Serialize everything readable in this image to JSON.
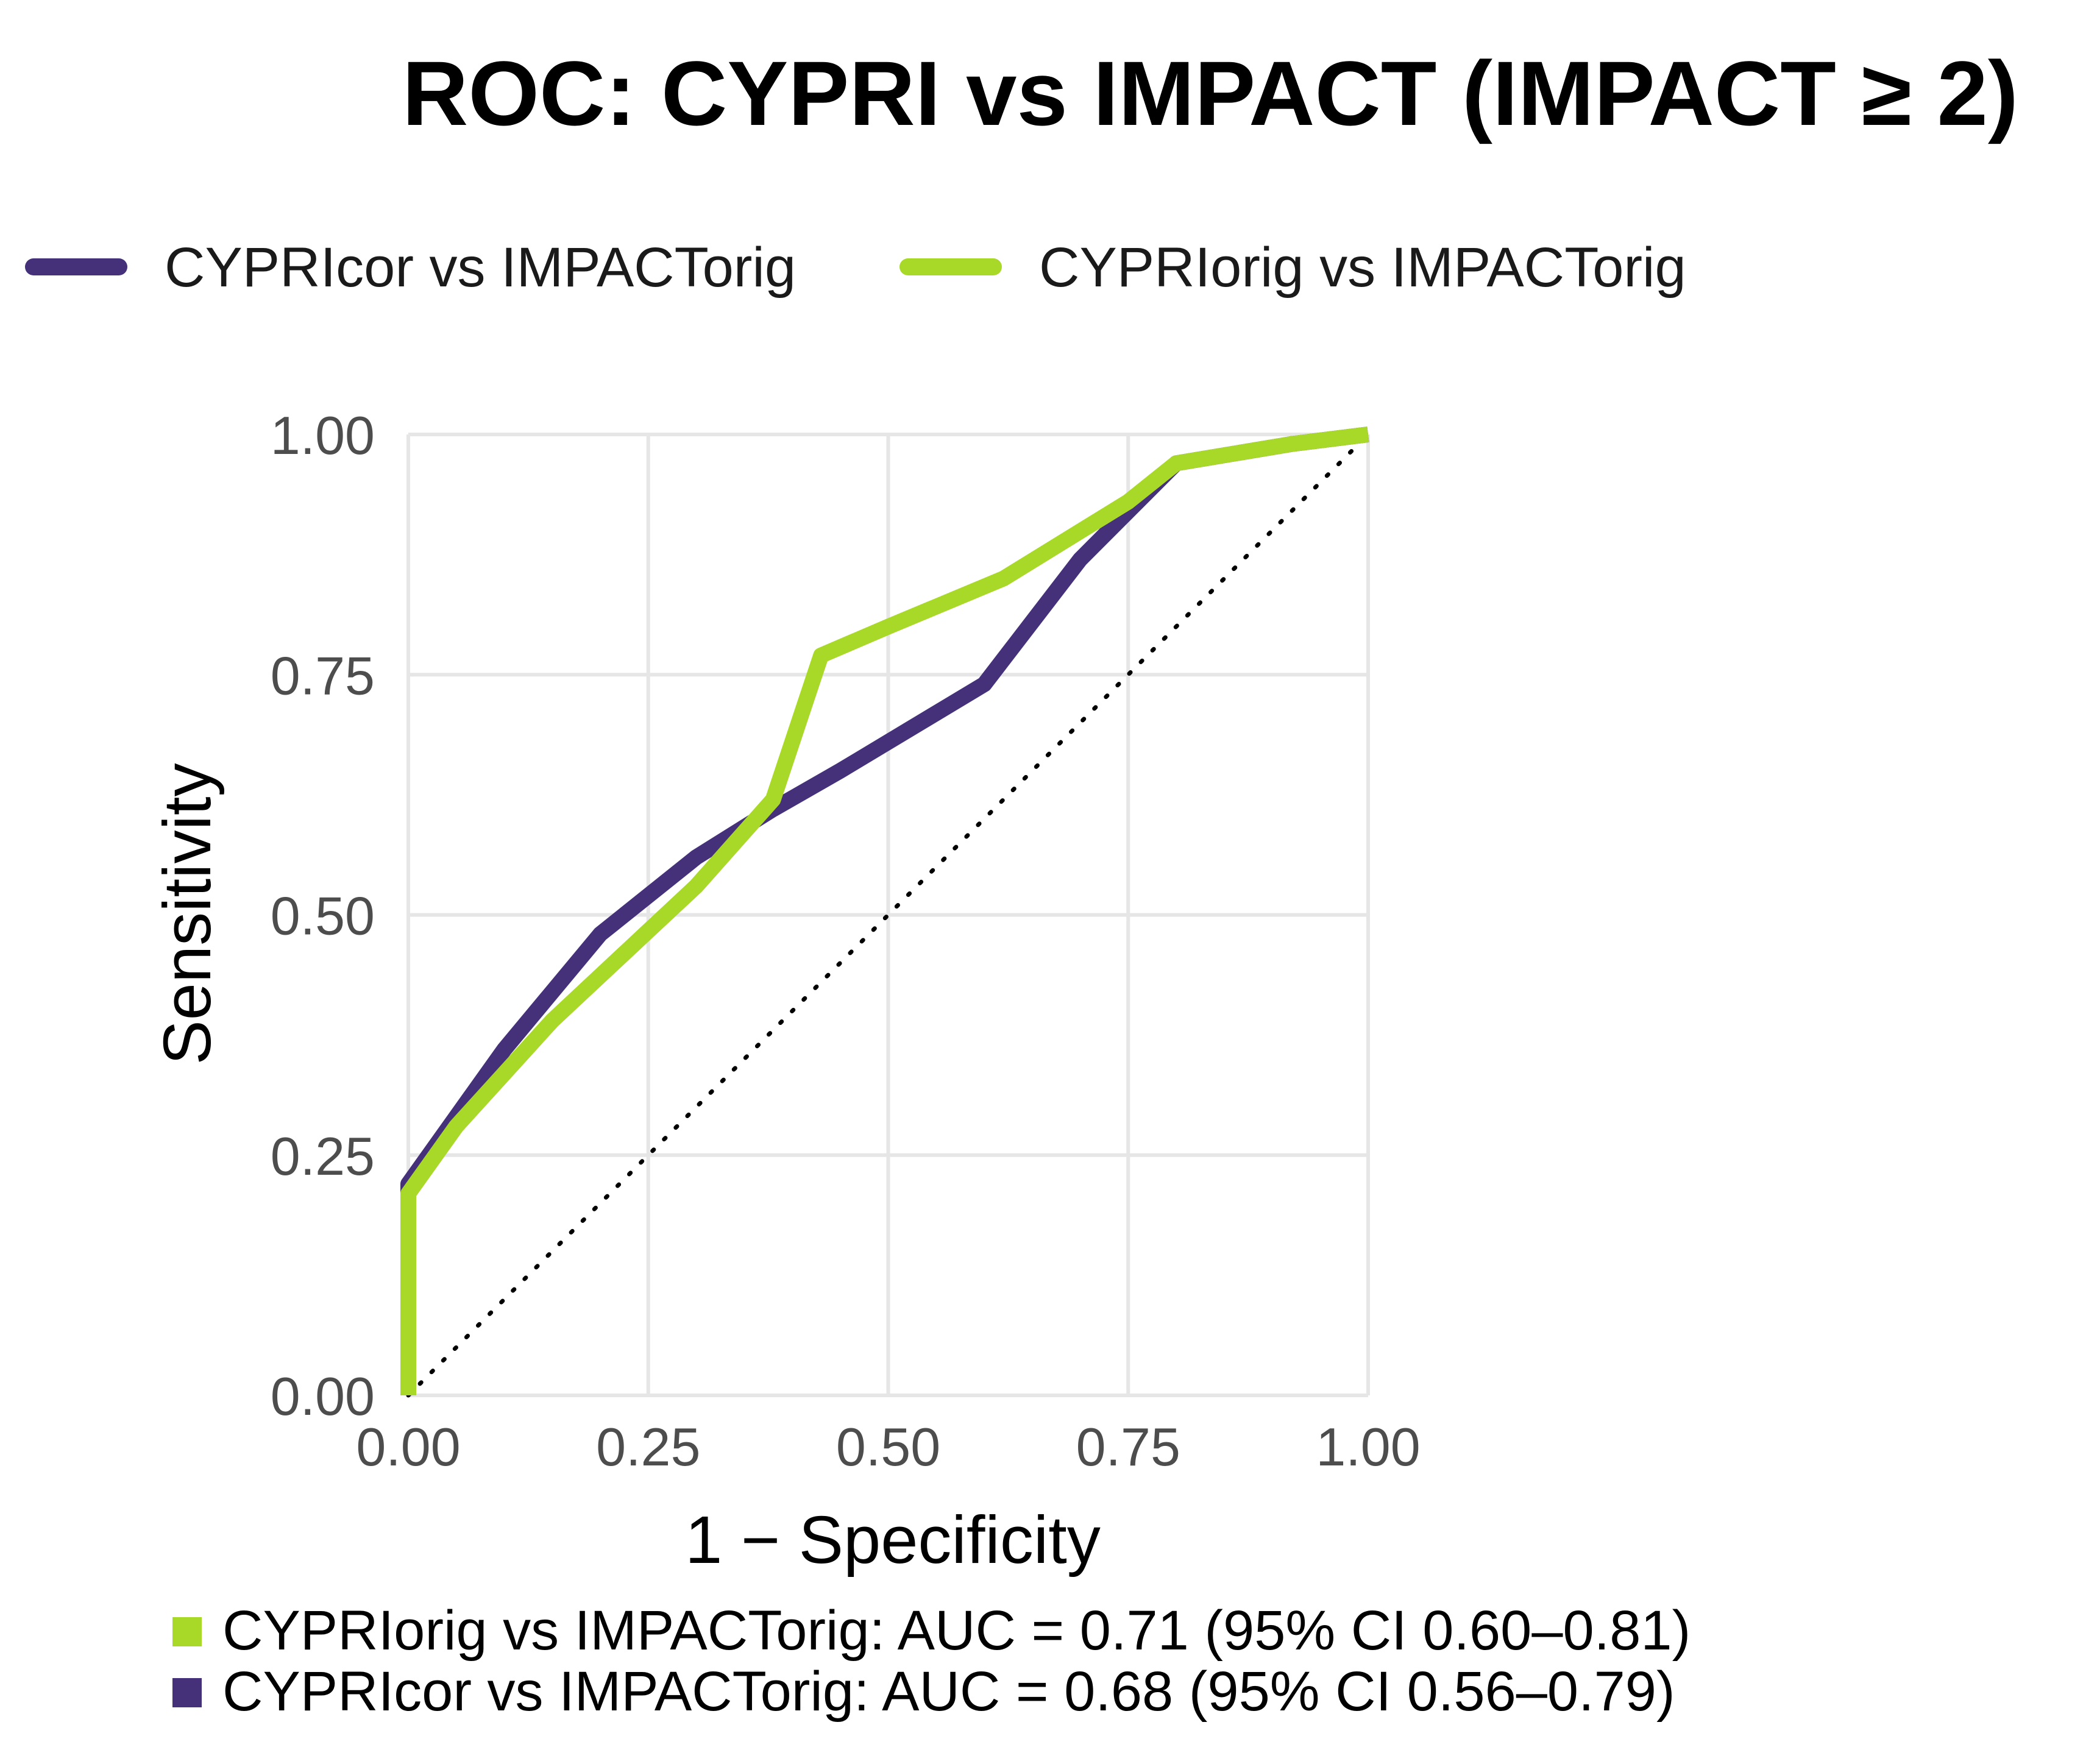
{
  "chart_data": {
    "type": "line",
    "title": "ROC: CYPRI vs IMPACT (IMPACT ≥ 2)",
    "xlabel": "1 − Specificity",
    "ylabel": "Sensitivity",
    "xlim": [
      0,
      1
    ],
    "ylim": [
      0,
      1
    ],
    "x_ticks": [
      "0.00",
      "0.25",
      "0.50",
      "0.75",
      "1.00"
    ],
    "y_ticks": [
      "0.00",
      "0.25",
      "0.50",
      "0.75",
      "1.00"
    ],
    "tick_values": [
      0,
      0.25,
      0.5,
      0.75,
      1
    ],
    "grid": true,
    "legend_position": "top",
    "reference_line": "diagonal dotted",
    "series": [
      {
        "name": "CYPRIcor vs IMPACTorig",
        "color": "#45307a",
        "points": [
          [
            0,
            0
          ],
          [
            0,
            0.22
          ],
          [
            0.05,
            0.29
          ],
          [
            0.1,
            0.36
          ],
          [
            0.2,
            0.48
          ],
          [
            0.3,
            0.56
          ],
          [
            0.38,
            0.61
          ],
          [
            0.45,
            0.65
          ],
          [
            0.6,
            0.74
          ],
          [
            0.7,
            0.87
          ],
          [
            0.8,
            0.97
          ],
          [
            0.92,
            0.99
          ],
          [
            1,
            1
          ]
        ]
      },
      {
        "name": "CYPRIorig vs IMPACTorig",
        "color": "#a8d929",
        "points": [
          [
            0,
            0
          ],
          [
            0,
            0.21
          ],
          [
            0.05,
            0.28
          ],
          [
            0.15,
            0.39
          ],
          [
            0.3,
            0.53
          ],
          [
            0.38,
            0.62
          ],
          [
            0.43,
            0.77
          ],
          [
            0.5,
            0.8
          ],
          [
            0.62,
            0.85
          ],
          [
            0.75,
            0.93
          ],
          [
            0.8,
            0.97
          ],
          [
            0.92,
            0.99
          ],
          [
            1,
            1
          ]
        ]
      }
    ],
    "auc_legend": [
      {
        "text": "CYPRIorig vs IMPACTorig: AUC = 0.71 (95% CI 0.60–0.81)",
        "color": "#a8d929"
      },
      {
        "text": "CYPRIcor vs IMPACTorig: AUC = 0.68 (95% CI 0.56–0.79)",
        "color": "#45307a"
      }
    ]
  }
}
